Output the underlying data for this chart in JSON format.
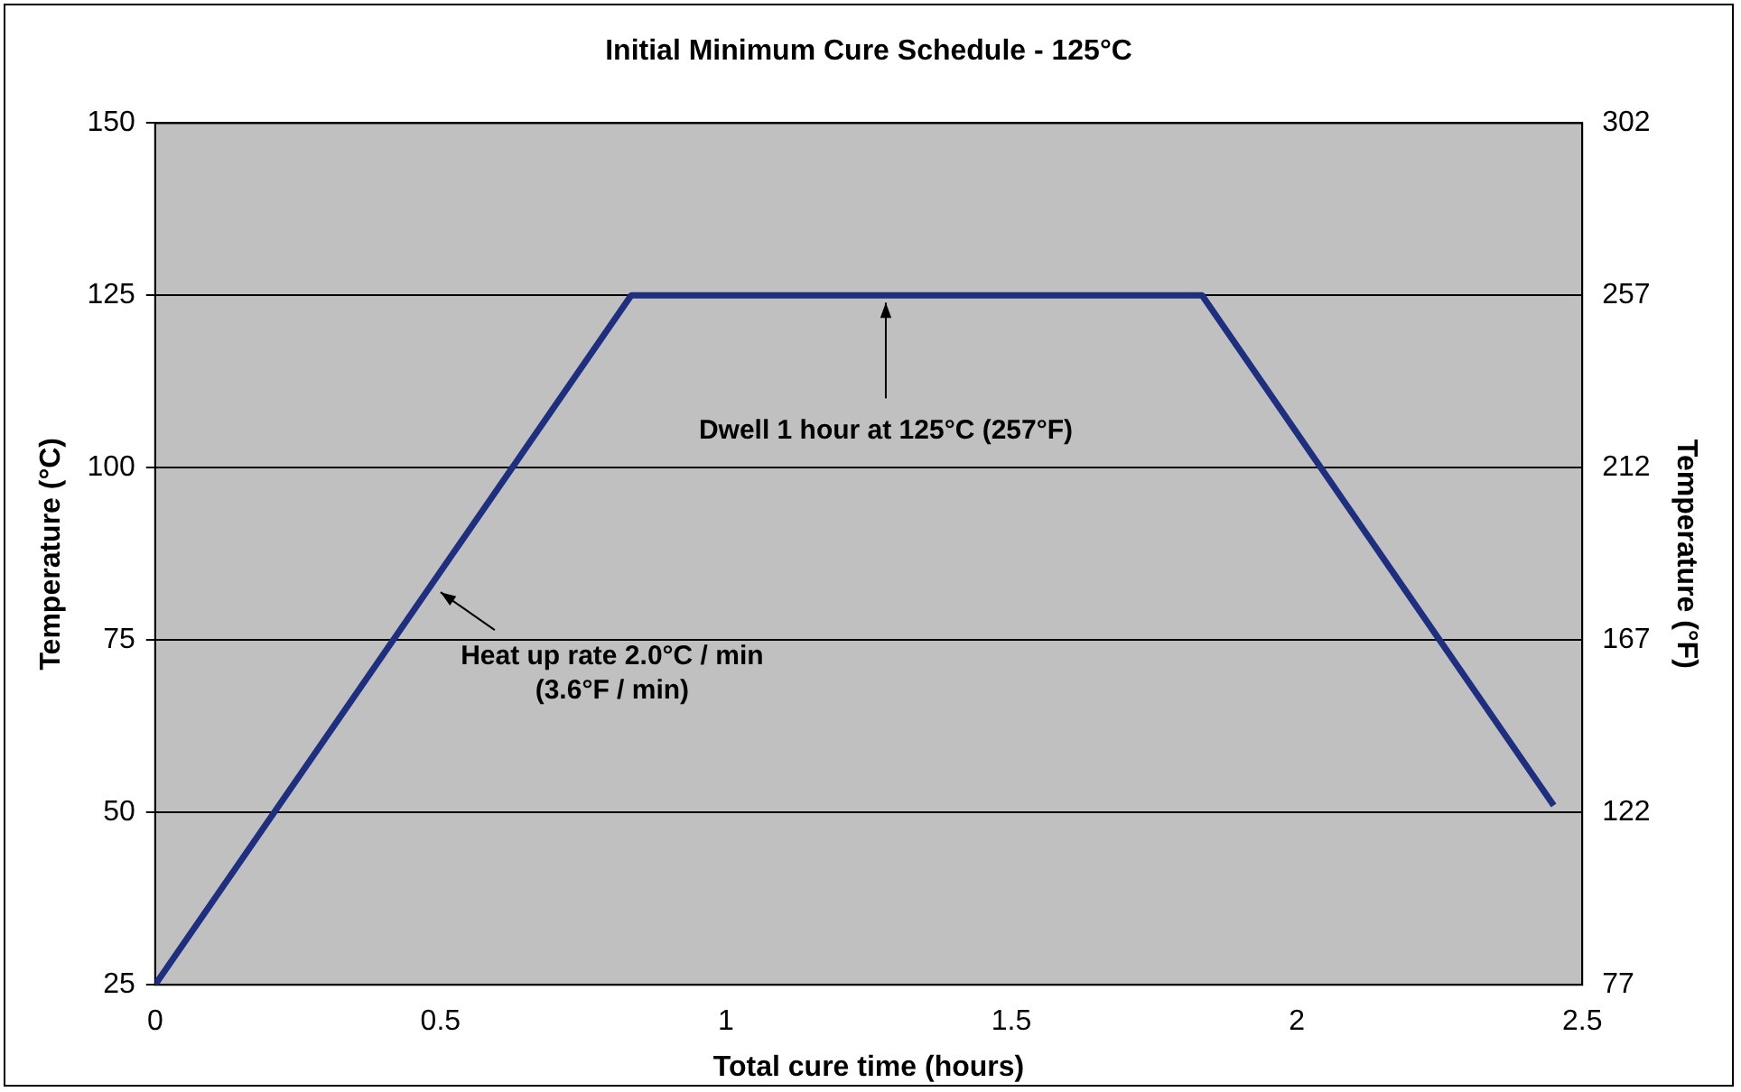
{
  "chart_data": {
    "type": "line",
    "title": "Initial Minimum Cure Schedule - 125°C",
    "xlabel": "Total cure time (hours)",
    "ylabel": "Temperature (°C)",
    "y2label": "Temperature (°F)",
    "x": [
      0,
      0.834,
      1.834,
      2.45
    ],
    "series": [
      {
        "color": "#1f2f80",
        "values": [
          25,
          125,
          125,
          51
        ]
      }
    ],
    "xlim": [
      0,
      2.5
    ],
    "xticks": [
      0,
      0.5,
      1,
      1.5,
      2,
      2.5
    ],
    "ylim": [
      25,
      150
    ],
    "yticks": [
      25,
      50,
      75,
      100,
      125,
      150
    ],
    "y2lim": [
      77,
      302
    ],
    "y2ticks": [
      77,
      122,
      167,
      212,
      257,
      302
    ],
    "grid": "y",
    "legend": false,
    "marker": "none",
    "line_style": "solid",
    "annotations": [
      {
        "text": "Dwell 1 hour at 125°C (257°F)",
        "x": 1.28,
        "y": 125
      },
      {
        "text": "Heat up rate 2.0°C / min\n(3.6°F / min)",
        "x": 0.5,
        "y": 83
      }
    ]
  }
}
